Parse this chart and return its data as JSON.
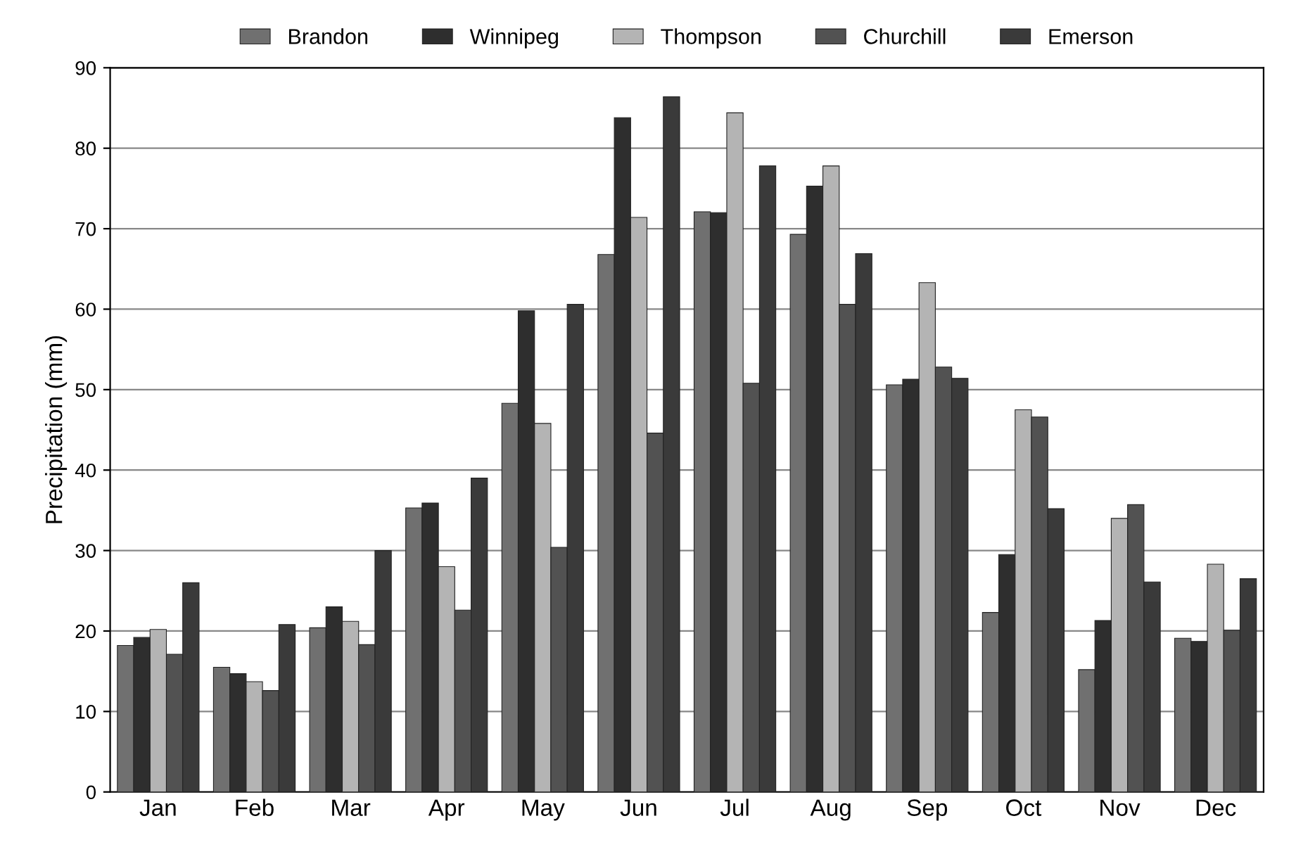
{
  "chart_data": {
    "type": "bar",
    "ylabel": "Precipitation (mm)",
    "categories": [
      "Jan",
      "Feb",
      "Mar",
      "Apr",
      "May",
      "Jun",
      "Jul",
      "Aug",
      "Sep",
      "Oct",
      "Nov",
      "Dec"
    ],
    "series": [
      {
        "name": "Brandon",
        "color": "#707070",
        "values": [
          18.2,
          15.5,
          20.4,
          35.3,
          48.3,
          66.8,
          72.1,
          69.3,
          50.6,
          22.3,
          15.2,
          19.1
        ]
      },
      {
        "name": "Winnipeg",
        "color": "#2e2e2e",
        "values": [
          19.2,
          14.7,
          23.0,
          35.9,
          59.8,
          83.8,
          72.0,
          75.3,
          51.3,
          29.5,
          21.3,
          18.7
        ]
      },
      {
        "name": "Thompson",
        "color": "#b4b4b4",
        "values": [
          20.2,
          13.7,
          21.2,
          28.0,
          45.8,
          71.4,
          84.4,
          77.8,
          63.3,
          47.5,
          34.0,
          28.3
        ]
      },
      {
        "name": "Churchill",
        "color": "#525252",
        "values": [
          17.1,
          12.6,
          18.3,
          22.6,
          30.4,
          44.6,
          50.8,
          60.6,
          52.8,
          46.6,
          35.7,
          20.1
        ]
      },
      {
        "name": "Emerson",
        "color": "#3a3a3a",
        "values": [
          26.0,
          20.8,
          30.0,
          39.0,
          60.6,
          86.4,
          77.8,
          66.9,
          51.4,
          35.2,
          26.1,
          26.5
        ]
      }
    ],
    "ylim": [
      0,
      90
    ],
    "yticks": [
      0,
      10,
      20,
      30,
      40,
      50,
      60,
      70,
      80,
      90
    ],
    "grid": "y",
    "legend": "top"
  }
}
